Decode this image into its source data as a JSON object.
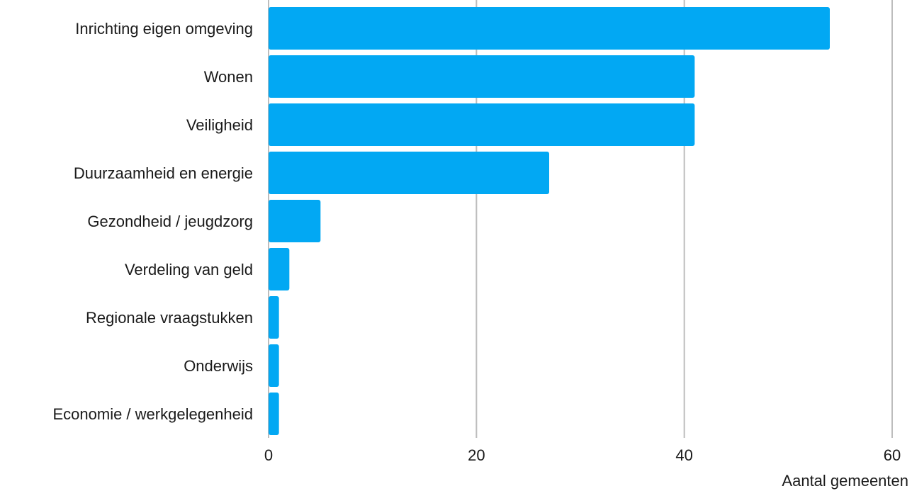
{
  "chart_data": {
    "type": "bar",
    "orientation": "horizontal",
    "categories": [
      "Inrichting eigen omgeving",
      "Wonen",
      "Veiligheid",
      "Duurzaamheid en energie",
      "Gezondheid / jeugdzorg",
      "Verdeling van geld",
      "Regionale vraagstukken",
      "Onderwijs",
      "Economie / werkgelegenheid"
    ],
    "values": [
      54,
      41,
      41,
      27,
      5,
      2,
      1,
      1,
      1
    ],
    "title": "",
    "xlabel": "Aantal gemeenten",
    "ylabel": "",
    "xlim": [
      0,
      60
    ],
    "xticks": [
      0,
      20,
      40,
      60
    ],
    "xtick_labels": [
      "0",
      "20",
      "40",
      "60"
    ],
    "grid": "vertical",
    "bar_color": "#02A8F3",
    "grid_color": "#BDBDBD"
  }
}
